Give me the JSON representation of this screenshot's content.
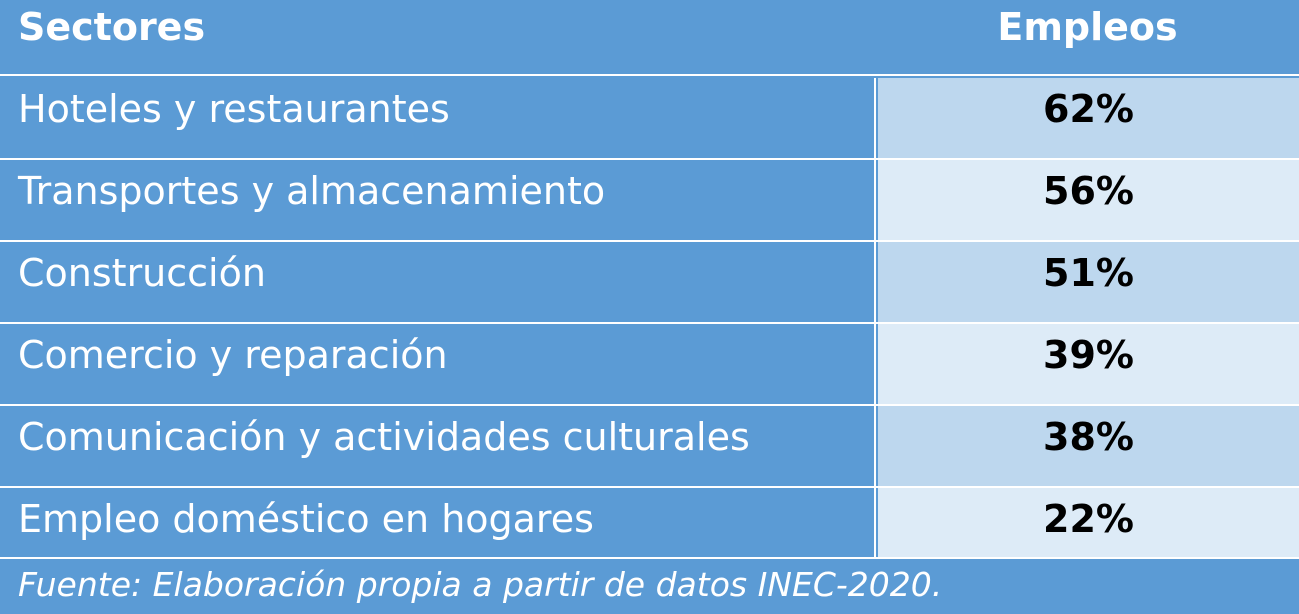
{
  "table": {
    "header": {
      "sector": "Sectores",
      "value": "Empleos"
    },
    "rows": [
      {
        "sector": "Hoteles y restaurantes",
        "value": "62%"
      },
      {
        "sector": "Transportes y almacenamiento",
        "value": "56%"
      },
      {
        "sector": "Construcción",
        "value": "51%"
      },
      {
        "sector": "Comercio y reparación",
        "value": "39%"
      },
      {
        "sector": "Comunicación y actividades culturales",
        "value": "38%"
      },
      {
        "sector": "Empleo doméstico en hogares",
        "value": "22%"
      }
    ],
    "source": "Fuente: Elaboración propia a partir de datos INEC-2020."
  },
  "colors": {
    "header_bg": "#5b9bd5",
    "value_odd_bg": "#bdd7ee",
    "value_even_bg": "#ddebf7"
  }
}
